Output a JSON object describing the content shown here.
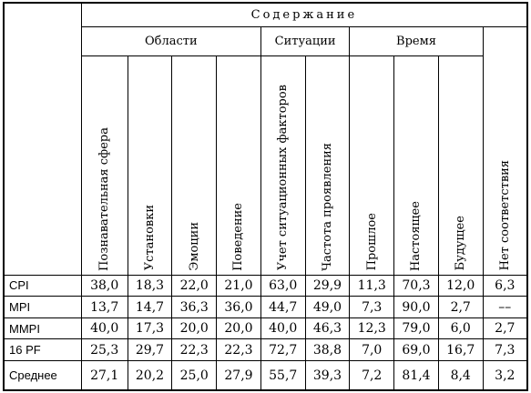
{
  "header": {
    "main": "Содержание",
    "groups": [
      {
        "label": "Области"
      },
      {
        "label": "Ситуации"
      },
      {
        "label": "Время"
      }
    ],
    "columns": [
      "Познавательная сфера",
      "Установки",
      "Эмоции",
      "Поведение",
      "Учет ситуационных факторов",
      "Частота проявления",
      "Прошлое",
      "Настоящее",
      "Будущее",
      "Нет соответствия"
    ]
  },
  "rows": [
    {
      "label": "CPI",
      "values": [
        "38,0",
        "18,3",
        "22,0",
        "21,0",
        "63,0",
        "29,9",
        "11,3",
        "70,3",
        "12,0",
        "6,3"
      ]
    },
    {
      "label": "MPI",
      "values": [
        "13,7",
        "14,7",
        "36,3",
        "36,0",
        "44,7",
        "49,0",
        "7,3",
        "90,0",
        "2,7",
        "––"
      ]
    },
    {
      "label": "MMPI",
      "values": [
        "40,0",
        "17,3",
        "20,0",
        "20,0",
        "40,0",
        "46,3",
        "12,3",
        "79,0",
        "6,0",
        "2,7"
      ]
    },
    {
      "label": "16 PF",
      "values": [
        "25,3",
        "29,7",
        "22,3",
        "22,3",
        "72,7",
        "38,8",
        "7,0",
        "69,0",
        "16,7",
        "7,3"
      ]
    },
    {
      "label": "Среднее",
      "values": [
        "27,1",
        "20,2",
        "25,0",
        "27,9",
        "55,7",
        "39,3",
        "7,2",
        "81,4",
        "8,4",
        "3,2"
      ]
    }
  ]
}
